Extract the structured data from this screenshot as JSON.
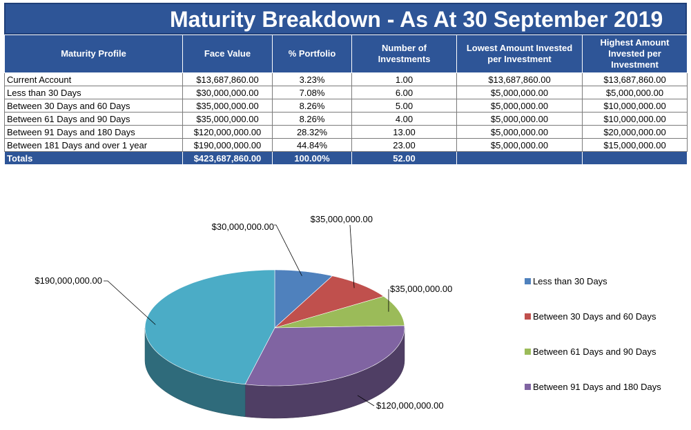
{
  "title": "Maturity Breakdown - As At 30 September 2019",
  "table": {
    "headers": [
      "Maturity Profile",
      "Face Value",
      "% Portfolio",
      "Number of Investments",
      "Lowest Amount Invested per Investment",
      "Highest Amount Invested per Investment"
    ],
    "rows": [
      [
        "Current Account",
        "$13,687,860.00",
        "3.23%",
        "1.00",
        "$13,687,860.00",
        "$13,687,860.00"
      ],
      [
        "Less than 30 Days",
        "$30,000,000.00",
        "7.08%",
        "6.00",
        "$5,000,000.00",
        "$5,000,000.00"
      ],
      [
        "Between 30 Days and 60 Days",
        "$35,000,000.00",
        "8.26%",
        "5.00",
        "$5,000,000.00",
        "$10,000,000.00"
      ],
      [
        "Between 61 Days and 90 Days",
        "$35,000,000.00",
        "8.26%",
        "4.00",
        "$5,000,000.00",
        "$10,000,000.00"
      ],
      [
        "Between 91 Days and 180 Days",
        "$120,000,000.00",
        "28.32%",
        "13.00",
        "$5,000,000.00",
        "$20,000,000.00"
      ],
      [
        "Between 181 Days and over 1 year",
        "$190,000,000.00",
        "44.84%",
        "23.00",
        "$5,000,000.00",
        "$15,000,000.00"
      ]
    ],
    "totals": [
      "Totals",
      "$423,687,860.00",
      "100.00%",
      "52.00",
      "",
      ""
    ]
  },
  "chart_data": {
    "type": "pie",
    "style": "3d",
    "legend_position": "right",
    "slices": [
      {
        "label": "Less than 30 Days",
        "value": 30000000,
        "data_label": "$30,000,000.00",
        "color": "#4F81BD",
        "in_legend": true
      },
      {
        "label": "Between 30 Days and 60 Days",
        "value": 35000000,
        "data_label": "$35,000,000.00",
        "color": "#C0504D",
        "in_legend": true
      },
      {
        "label": "Between 61 Days and 90 Days",
        "value": 35000000,
        "data_label": "$35,000,000.00",
        "color": "#9BBB59",
        "in_legend": true
      },
      {
        "label": "Between 91 Days and 180 Days",
        "value": 120000000,
        "data_label": "$120,000,000.00",
        "color": "#8064A2",
        "in_legend": true
      },
      {
        "label": "Between 181 Days and over 1 year",
        "value": 190000000,
        "data_label": "$190,000,000.00",
        "color": "#4BACC6",
        "in_legend": false
      }
    ]
  }
}
